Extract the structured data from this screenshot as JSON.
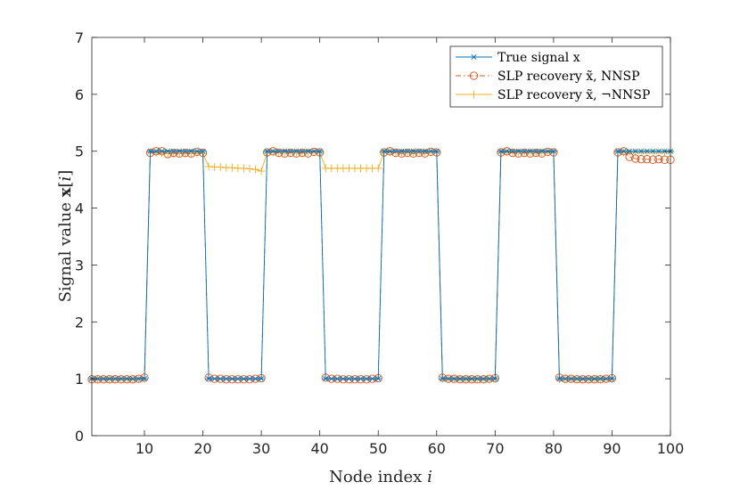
{
  "chart_data": {
    "type": "line",
    "title": "",
    "xlabel": "Node index i",
    "ylabel": "Signal value x[i]",
    "xlim": [
      1,
      100
    ],
    "ylim": [
      0,
      7
    ],
    "xticks": [
      10,
      20,
      30,
      40,
      50,
      60,
      70,
      80,
      90,
      100
    ],
    "yticks": [
      0,
      1,
      2,
      3,
      4,
      5,
      6,
      7
    ],
    "xtick_labels": [
      "10",
      "20",
      "30",
      "40",
      "50",
      "60",
      "70",
      "80",
      "90",
      "100"
    ],
    "ytick_labels": [
      "0",
      "1",
      "2",
      "3",
      "4",
      "5",
      "6",
      "7"
    ],
    "grid": false,
    "legend_location": "top-right",
    "series": [
      {
        "name": "True signal x",
        "legend_label": "True signal x",
        "color": "#0072BD",
        "marker": "asterisk",
        "line": "solid",
        "values": [
          1,
          1,
          1,
          1,
          1,
          1,
          1,
          1,
          1,
          1,
          5,
          5,
          5,
          5,
          5,
          5,
          5,
          5,
          5,
          5,
          1,
          1,
          1,
          1,
          1,
          1,
          1,
          1,
          1,
          1,
          5,
          5,
          5,
          5,
          5,
          5,
          5,
          5,
          5,
          5,
          1,
          1,
          1,
          1,
          1,
          1,
          1,
          1,
          1,
          1,
          5,
          5,
          5,
          5,
          5,
          5,
          5,
          5,
          5,
          5,
          1,
          1,
          1,
          1,
          1,
          1,
          1,
          1,
          1,
          1,
          5,
          5,
          5,
          5,
          5,
          5,
          5,
          5,
          5,
          5,
          1,
          1,
          1,
          1,
          1,
          1,
          1,
          1,
          1,
          1,
          5,
          5,
          5,
          5,
          5,
          5,
          5,
          5,
          5,
          5
        ]
      },
      {
        "name": "SLP recovery NNSP",
        "legend_label": "SLP recovery x̃, NNSP",
        "color": "#D95319",
        "marker": "circle",
        "line": "dashdot",
        "values": [
          0.99,
          0.99,
          0.99,
          0.99,
          0.99,
          0.99,
          0.99,
          0.99,
          1.0,
          1.02,
          4.97,
          5.0,
          5.0,
          4.95,
          4.97,
          4.96,
          4.97,
          4.96,
          4.99,
          4.97,
          1.02,
          1.0,
          1.0,
          0.99,
          0.99,
          0.99,
          0.99,
          0.99,
          1.0,
          1.01,
          4.98,
          5.0,
          4.97,
          4.96,
          4.97,
          4.96,
          4.97,
          4.96,
          4.99,
          4.98,
          1.02,
          1.0,
          1.0,
          0.99,
          0.99,
          0.99,
          0.99,
          0.99,
          1.0,
          1.01,
          4.98,
          5.0,
          4.97,
          4.96,
          4.97,
          4.96,
          4.97,
          4.96,
          4.99,
          4.98,
          1.02,
          1.0,
          1.0,
          0.99,
          0.99,
          0.99,
          0.99,
          0.99,
          1.0,
          1.01,
          4.98,
          5.0,
          4.97,
          4.96,
          4.97,
          4.96,
          4.97,
          4.96,
          4.99,
          4.98,
          1.02,
          1.0,
          1.0,
          0.99,
          0.99,
          0.99,
          0.99,
          0.99,
          1.0,
          1.01,
          4.98,
          5.0,
          4.9,
          4.87,
          4.86,
          4.86,
          4.85,
          4.86,
          4.85,
          4.85
        ]
      },
      {
        "name": "SLP recovery not NNSP",
        "legend_label": "SLP recovery x̃, ¬NNSP",
        "color": "#EDB120",
        "marker": "plus",
        "line": "solid",
        "values": [
          1.0,
          1.0,
          1.0,
          1.0,
          1.0,
          1.0,
          1.0,
          1.0,
          1.0,
          1.0,
          4.98,
          4.97,
          4.96,
          4.96,
          4.96,
          4.96,
          4.96,
          4.96,
          4.96,
          4.96,
          4.73,
          4.72,
          4.72,
          4.71,
          4.71,
          4.7,
          4.7,
          4.69,
          4.68,
          4.65,
          4.98,
          4.98,
          4.98,
          4.98,
          4.98,
          4.98,
          4.98,
          4.98,
          4.98,
          4.98,
          4.7,
          4.7,
          4.7,
          4.7,
          4.7,
          4.7,
          4.7,
          4.7,
          4.7,
          4.7,
          4.98,
          4.98,
          4.98,
          4.98,
          4.98,
          4.98,
          4.98,
          4.98,
          4.98,
          4.98,
          1.0,
          1.0,
          1.0,
          1.0,
          1.0,
          1.0,
          1.0,
          1.0,
          1.0,
          1.0,
          4.98,
          4.98,
          4.98,
          4.98,
          4.98,
          4.98,
          4.98,
          4.98,
          4.98,
          4.98,
          1.0,
          1.0,
          1.0,
          1.0,
          1.0,
          1.0,
          1.0,
          1.0,
          1.0,
          1.0,
          4.98,
          4.98,
          4.98,
          4.98,
          4.98,
          4.98,
          4.98,
          4.98,
          4.98,
          4.98
        ]
      }
    ]
  }
}
